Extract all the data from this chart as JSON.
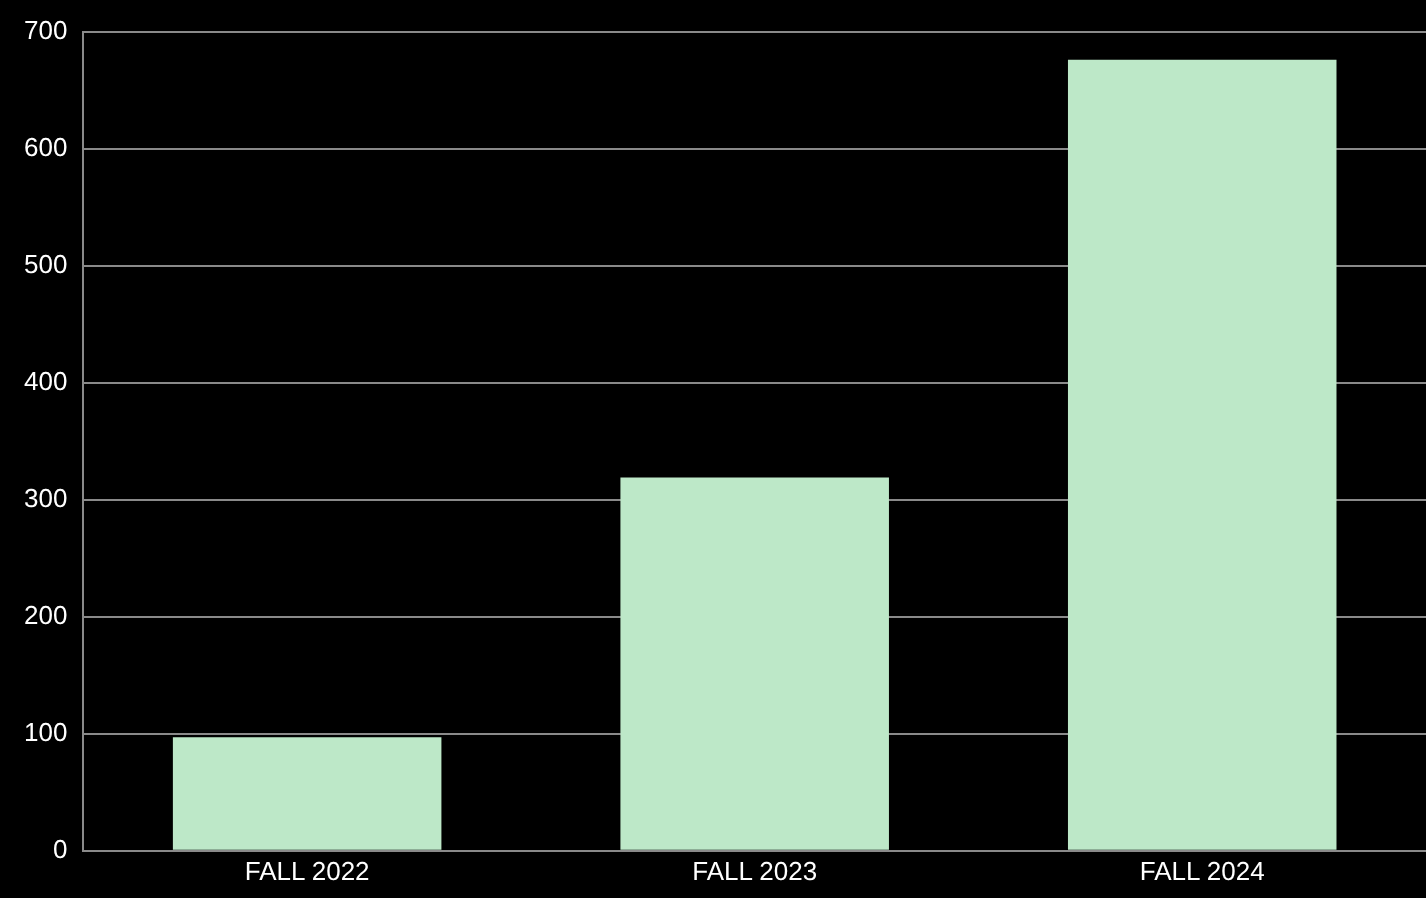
{
  "chart_data": {
    "type": "bar",
    "categories": [
      "FALL 2022",
      "FALL 2023",
      "FALL 2024"
    ],
    "values": [
      97,
      319,
      676
    ],
    "color": "#bde8c8",
    "ylim": [
      0,
      700
    ],
    "yticks": [
      0,
      100,
      200,
      300,
      400,
      500,
      600,
      700
    ],
    "grid": "y",
    "legend": false
  }
}
